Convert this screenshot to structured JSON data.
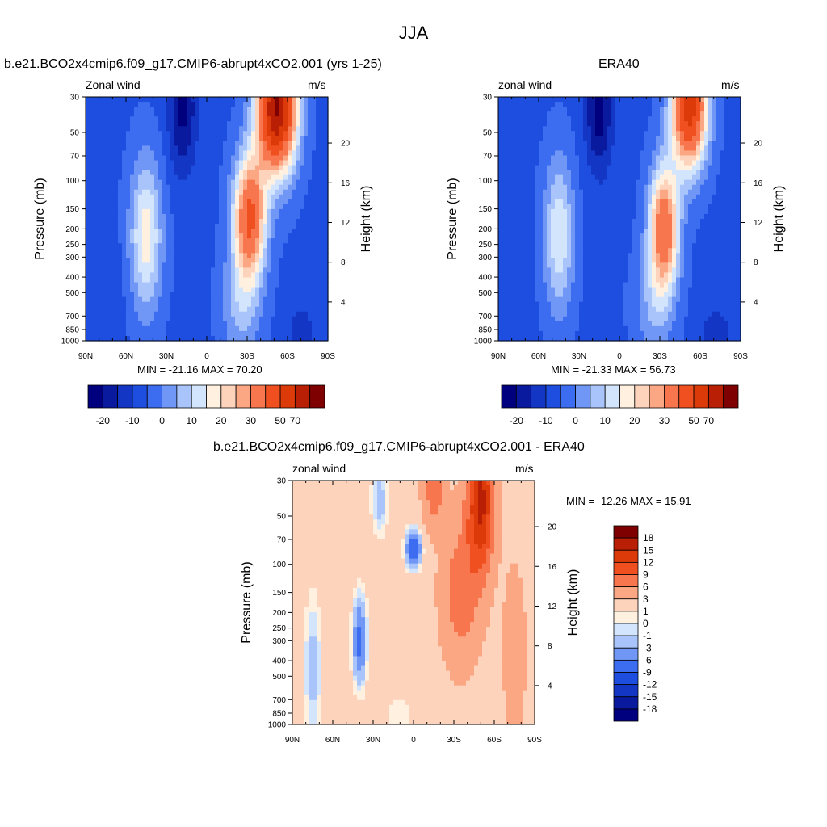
{
  "figure_title": "JJA",
  "colors": {
    "ramp": [
      "#00007f",
      "#0a1a9e",
      "#1436c4",
      "#1e4edf",
      "#3c6cf0",
      "#7097f5",
      "#a8c4fb",
      "#d3e5fc",
      "#fff0e0",
      "#fdd3bc",
      "#fca784",
      "#f7764e",
      "#f0501f",
      "#dc3a08",
      "#b81f04",
      "#7f0000"
    ]
  },
  "chart_data": [
    {
      "type": "contour",
      "title": "b.e21.BCO2x4cmip6.f09_g17.CMIP6-abrupt4xCO2.001 (yrs 1-25)",
      "left_label": "Zonal wind",
      "right_label": "m/s",
      "stats": "MIN = -21.16  MAX =  70.20",
      "min": -21.16,
      "max": 70.2,
      "xlabel": "",
      "ylabel": "Pressure (mb)",
      "y2label": "Height (km)",
      "x_ticks": [
        "90N",
        "60N",
        "30N",
        "0",
        "30S",
        "60S",
        "90S"
      ],
      "y_ticks": [
        "30",
        "50",
        "70",
        "100",
        "150",
        "200",
        "250",
        "300",
        "400",
        "500",
        "700",
        "850",
        "1000"
      ],
      "y2_ticks": [
        "20",
        "16",
        "12",
        "8",
        "4"
      ],
      "colorbar": {
        "orientation": "horizontal",
        "labels": [
          "-20",
          "-10",
          "0",
          "10",
          "20",
          "30",
          "50",
          "70"
        ]
      },
      "features": [
        {
          "lat": 20,
          "p": 30,
          "value": -21
        },
        {
          "lat": 45,
          "p": 200,
          "value": 15
        },
        {
          "lat": -50,
          "p": 30,
          "value": 70
        },
        {
          "lat": -30,
          "p": 170,
          "value": 40
        }
      ]
    },
    {
      "type": "contour",
      "title": "ERA40",
      "left_label": "zonal wind",
      "right_label": "m/s",
      "stats": "MIN = -21.33  MAX =  56.73",
      "min": -21.33,
      "max": 56.73,
      "xlabel": "",
      "ylabel": "Pressure (mb)",
      "y2label": "Height (km)",
      "x_ticks": [
        "90N",
        "60N",
        "30N",
        "0",
        "30S",
        "60S",
        "90S"
      ],
      "y_ticks": [
        "30",
        "50",
        "70",
        "100",
        "150",
        "200",
        "250",
        "300",
        "400",
        "500",
        "700",
        "850",
        "1000"
      ],
      "y2_ticks": [
        "20",
        "16",
        "12",
        "8",
        "4"
      ],
      "colorbar": {
        "orientation": "horizontal",
        "labels": [
          "-20",
          "-10",
          "0",
          "10",
          "20",
          "30",
          "50",
          "70"
        ]
      },
      "features": [
        {
          "lat": 15,
          "p": 30,
          "value": -21
        },
        {
          "lat": 45,
          "p": 200,
          "value": 13
        },
        {
          "lat": -50,
          "p": 30,
          "value": 56
        },
        {
          "lat": -30,
          "p": 200,
          "value": 38
        }
      ]
    },
    {
      "type": "contour",
      "title": "b.e21.BCO2x4cmip6.f09_g17.CMIP6-abrupt4xCO2.001 - ERA40",
      "left_label": "zonal wind",
      "right_label": "m/s",
      "stats": "MIN = -12.26  MAX =  15.91",
      "min": -12.26,
      "max": 15.91,
      "xlabel": "",
      "ylabel": "Pressure (mb)",
      "y2label": "Height (km)",
      "x_ticks": [
        "90N",
        "60N",
        "30N",
        "0",
        "30S",
        "60S",
        "90S"
      ],
      "y_ticks": [
        "30",
        "50",
        "70",
        "100",
        "150",
        "200",
        "250",
        "300",
        "400",
        "500",
        "700",
        "850",
        "1000"
      ],
      "y2_ticks": [
        "20",
        "16",
        "12",
        "8",
        "4"
      ],
      "colorbar": {
        "orientation": "vertical",
        "labels": [
          "18",
          "15",
          "12",
          "9",
          "6",
          "3",
          "1",
          "0",
          "-1",
          "-3",
          "-6",
          "-9",
          "-12",
          "-15",
          "-18"
        ]
      },
      "features": [
        {
          "lat": -50,
          "p": 30,
          "value": 15
        },
        {
          "lat": 0,
          "p": 80,
          "value": -8
        },
        {
          "lat": 40,
          "p": 300,
          "value": -6
        },
        {
          "lat": -30,
          "p": 150,
          "value": 9
        }
      ]
    }
  ]
}
